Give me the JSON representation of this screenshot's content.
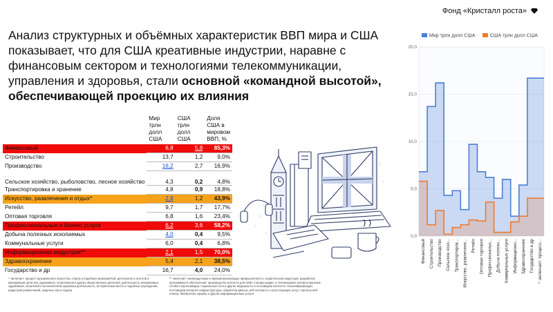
{
  "brand": {
    "name": "Фонд «Кристалл роста»",
    "icon": "diamond-icon"
  },
  "headline": {
    "plain": "Анализ структурных и объёмных характеристик ВВП мира и США показывает, что для США креативные индустрии, наравне с финансовым сектором и технологиями телекоммуникации, управления и здоровья, стали ",
    "bold": "основной «командной высотой», обеспечивающей проекцию их влияния"
  },
  "table": {
    "headers": [
      "",
      "Мир трлн долл США",
      "США трлн долл США",
      "Доля США в мировом ВВП, %"
    ],
    "rows": [
      {
        "name": "Финансовый",
        "world": "6,8",
        "us": "5,8",
        "share": "85,3%",
        "style": "red",
        "us_underline": true
      },
      {
        "name": "Строительство",
        "world": "13,7",
        "us": "1,2",
        "share": "9,0%",
        "style": ""
      },
      {
        "name": "Производство",
        "world": "16,2",
        "us": "2,7",
        "share": "16,9%",
        "style": "",
        "world_link": true
      },
      {
        "name": "Сельское хозяйство, рыболовство, лесное хозяйство",
        "world": "4,3",
        "us": "0,2",
        "share": "4,8%",
        "style": "",
        "tall": true,
        "us_bold": true
      },
      {
        "name": "Транспортировка и хранение",
        "world": "4,8",
        "us": "0,9",
        "share": "18,8%",
        "style": "",
        "us_bold": true
      },
      {
        "name": "Искусство, развлечения и отдых*",
        "world": "2,8",
        "us": "1,2",
        "share": "43,9%",
        "style": "orange",
        "world_link": true
      },
      {
        "name": "Ретейл",
        "world": "9,7",
        "us": "1,7",
        "share": "17,7%",
        "style": ""
      },
      {
        "name": "Оптовая торговля",
        "world": "6,8",
        "us": "1,6",
        "share": "23,4%",
        "style": ""
      },
      {
        "name": "Профессиональные и бизнес услуги",
        "world": "6,2",
        "us": "3,6",
        "share": "58,2%",
        "style": "red",
        "world_link": true
      },
      {
        "name": "Добыча полезных ископаемых",
        "world": "4,0",
        "us": "0,4",
        "share": "9,5%",
        "style": "",
        "world_link": true,
        "us_bold": true
      },
      {
        "name": "Коммунальные услуги",
        "world": "6,0",
        "us": "0,4",
        "share": "6,8%",
        "style": "",
        "us_bold": true
      },
      {
        "name": "Информационная индустрия**",
        "world": "2,1",
        "us": "1,5",
        "share": "70,0%",
        "style": "red",
        "world_link": true
      },
      {
        "name": "Здравоохранение",
        "world": "5,4",
        "us": "2,1",
        "share": "38,5%",
        "style": "orange"
      },
      {
        "name": "Государство и др",
        "world": "16,7",
        "us": "4,0",
        "share": "24,0%",
        "style": "",
        "us_bold": true
      }
    ]
  },
  "footnotes": {
    "fn1": "* -включает: процесс музыкального искусства, спорта и подобных мероприятий, деятельность агентов и менеджеров артистов, художников, спортсменов и других общественных деятелей, деятельность независимых художников, писателей и исполнителей; музейная деятельность, исторические места и подобные учреждения, индустрия развлечений, азартных игр и отдыха",
    "fn2": "** -включает: киноиндустрию и звукозаписывающую промышленность; издательская индустрия; разработка программного обеспечения; производство контента для СМИ; станции радио- и телевещания; распространение готового мультимедиа; социальные сети и другие медиахосты и поставщики контента; телекоммуникации; поставщики интернет-инфраструктуры, обработки данных, веб-хостинга и сопутствующих услуг; порталы веб-поиска, библиотеки, архивы и другие информационные услуги"
  },
  "chart_data": {
    "type": "area",
    "categories": [
      "Финансовый",
      "Строительство",
      "Производство",
      "Сельское хозя...",
      "Транспортиров...",
      "Искусство, развлечени...",
      "Ретейл",
      "Оптовая торговля",
      "Профессиональн...",
      "Добыча полезн...",
      "Коммунальные услуги",
      "Информационн...",
      "Здравоохранение",
      "Государство и др",
      "* -включает: процесс..."
    ],
    "series": [
      {
        "name": "Мир трлн долл США",
        "color": "#4a7fd6",
        "values": [
          6.8,
          13.7,
          16.2,
          4.3,
          4.8,
          2.8,
          9.7,
          6.8,
          6.2,
          4.0,
          6.0,
          2.1,
          5.4,
          16.7,
          16.7
        ]
      },
      {
        "name": "США трлн долл США",
        "color": "#f07a2c",
        "values": [
          5.8,
          1.2,
          2.7,
          0.2,
          0.9,
          1.2,
          1.7,
          1.6,
          3.6,
          0.4,
          0.4,
          1.5,
          2.1,
          4.0,
          4.0
        ]
      }
    ],
    "yticks": [
      "0,0",
      "5,0",
      "10,0",
      "15,0",
      "20,0"
    ],
    "ylim": [
      0,
      20
    ],
    "legend_position": "top",
    "grid": true,
    "step": true
  }
}
